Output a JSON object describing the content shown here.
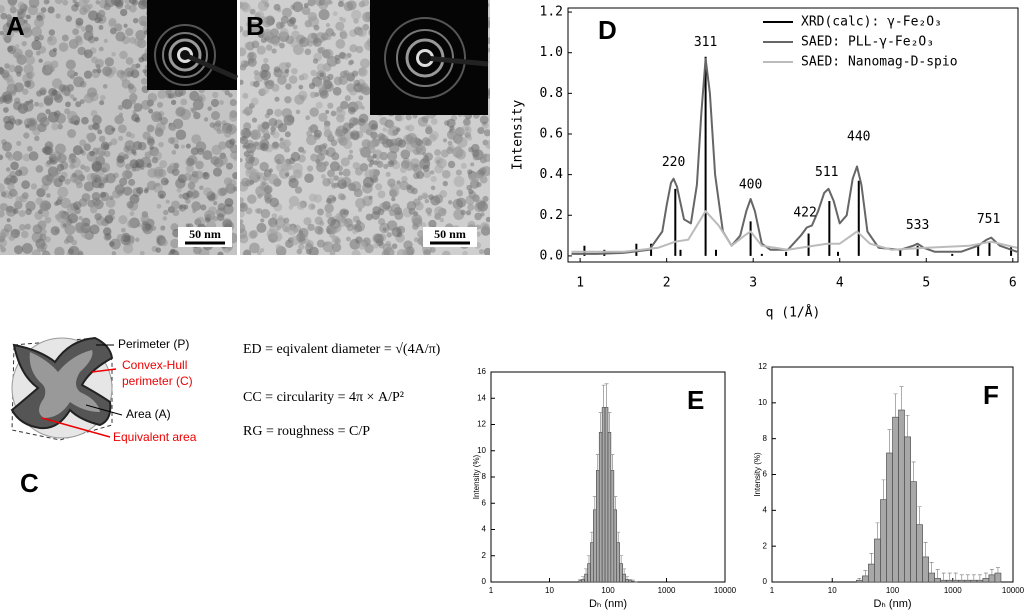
{
  "panels": {
    "a": {
      "label": "A",
      "scale_bar": "50 nm"
    },
    "b": {
      "label": "B",
      "scale_bar": "50 nm"
    },
    "c": {
      "label": "C",
      "perimeter": "Perimeter (P)",
      "convex_hull": [
        "Convex-Hull",
        "perimeter (C)"
      ],
      "area": "Area (A)",
      "equivalent_area": "Equivalent area",
      "formulas": [
        "ED = eqivalent diameter = √(4A/π)",
        "CC = circularity = 4π × A/P²",
        "RG = roughness = C/P"
      ]
    }
  },
  "chart_data": [
    {
      "type": "line",
      "label": "D",
      "xlabel": "q (1/Å)",
      "ylabel": "Intensity",
      "legend": "upper right",
      "xlim": [
        0.86,
        6.06
      ],
      "ylim": [
        -0.03,
        1.22
      ],
      "xticks": [
        1,
        2,
        3,
        4,
        5,
        6
      ],
      "yticks": [
        {
          "value": 0,
          "label": "0.0"
        },
        0.2,
        0.4,
        0.6,
        0.8,
        {
          "value": 1,
          "label": "1.0"
        },
        1.2
      ],
      "series": [
        {
          "name": "XRD(calc): γ-Fe₂O₃",
          "color": "#000000",
          "mark": "stick",
          "x": [
            1.05,
            1.28,
            1.65,
            1.82,
            2.1,
            2.16,
            2.45,
            2.57,
            2.97,
            3.1,
            3.38,
            3.64,
            3.88,
            3.98,
            4.22,
            4.7,
            4.9,
            5.3,
            5.6,
            5.73,
            5.98
          ],
          "values": [
            0.05,
            0.03,
            0.06,
            0.06,
            0.33,
            0.03,
            0.98,
            0.03,
            0.17,
            0.01,
            0.02,
            0.11,
            0.27,
            0.02,
            0.37,
            0.03,
            0.05,
            0.01,
            0.05,
            0.07,
            0.05
          ]
        },
        {
          "name": "SAED: PLL-γ-Fe₂O₃",
          "color": "#666666",
          "x": [
            0.9,
            1.2,
            1.5,
            1.8,
            1.95,
            2.0,
            2.05,
            2.08,
            2.12,
            2.2,
            2.28,
            2.35,
            2.4,
            2.45,
            2.5,
            2.56,
            2.65,
            2.75,
            2.85,
            2.92,
            2.97,
            3.02,
            3.1,
            3.2,
            3.4,
            3.55,
            3.62,
            3.68,
            3.75,
            3.82,
            3.87,
            3.93,
            4.0,
            4.08,
            4.15,
            4.2,
            4.25,
            4.32,
            4.45,
            4.7,
            4.85,
            4.9,
            4.97,
            5.1,
            5.4,
            5.6,
            5.7,
            5.75,
            5.85,
            6.05
          ],
          "values": [
            0.01,
            0.01,
            0.015,
            0.03,
            0.12,
            0.25,
            0.36,
            0.38,
            0.34,
            0.18,
            0.16,
            0.35,
            0.7,
            0.97,
            0.8,
            0.4,
            0.12,
            0.05,
            0.1,
            0.22,
            0.28,
            0.22,
            0.06,
            0.03,
            0.03,
            0.1,
            0.14,
            0.15,
            0.22,
            0.31,
            0.33,
            0.27,
            0.16,
            0.2,
            0.38,
            0.44,
            0.35,
            0.12,
            0.04,
            0.03,
            0.05,
            0.06,
            0.04,
            0.02,
            0.02,
            0.05,
            0.08,
            0.09,
            0.05,
            0.02
          ]
        },
        {
          "name": "SAED: Nanomag-D-spio",
          "color": "#bbbbbb",
          "x": [
            0.9,
            1.5,
            1.9,
            2.1,
            2.25,
            2.45,
            2.6,
            2.75,
            2.9,
            2.97,
            3.1,
            3.4,
            3.7,
            3.85,
            4.0,
            4.2,
            4.35,
            4.6,
            5.0,
            5.5,
            5.75,
            6.05
          ],
          "values": [
            0.02,
            0.02,
            0.04,
            0.07,
            0.08,
            0.22,
            0.15,
            0.05,
            0.1,
            0.12,
            0.05,
            0.03,
            0.05,
            0.06,
            0.06,
            0.12,
            0.06,
            0.03,
            0.04,
            0.05,
            0.07,
            0.04
          ]
        }
      ],
      "annotations": [
        {
          "text": "220",
          "x": 2.08,
          "y": 0.46
        },
        {
          "text": "311",
          "x": 2.45,
          "y": 1.05
        },
        {
          "text": "400",
          "x": 2.97,
          "y": 0.35
        },
        {
          "text": "422",
          "x": 3.6,
          "y": 0.21
        },
        {
          "text": "511",
          "x": 3.85,
          "y": 0.41
        },
        {
          "text": "440",
          "x": 4.22,
          "y": 0.585
        },
        {
          "text": "533",
          "x": 4.9,
          "y": 0.15
        },
        {
          "text": "751",
          "x": 5.72,
          "y": 0.18
        }
      ]
    },
    {
      "type": "histogram",
      "label": "E",
      "xlabel": "Dₕ (nm)",
      "ylabel": "Intensity (%)",
      "log_x": true,
      "color": "#a8a8a8",
      "xlim": [
        1,
        10000
      ],
      "ylim": [
        0,
        16
      ],
      "xticks": [
        1,
        10,
        100,
        1000,
        10000
      ],
      "yticks": [
        0,
        2,
        4,
        6,
        8,
        10,
        12,
        14,
        16
      ],
      "bins": [
        31.6,
        35.5,
        39.8,
        44.7,
        50.1,
        56.2,
        63.1,
        70.8,
        79.4,
        89.1,
        100,
        112,
        126,
        141,
        158,
        178,
        200,
        224,
        251,
        282,
        316
      ],
      "values": [
        0.1,
        0.2,
        0.6,
        1.4,
        3.0,
        5.5,
        8.5,
        11.4,
        13.3,
        13.3,
        11.4,
        8.5,
        5.5,
        3.0,
        1.4,
        0.6,
        0.2,
        0.1,
        0.05,
        0
      ],
      "errors": [
        0.1,
        0.2,
        0.4,
        0.6,
        0.8,
        1.0,
        1.2,
        1.5,
        1.7,
        1.8,
        1.5,
        1.2,
        1.0,
        0.8,
        0.6,
        0.4,
        0.2,
        0.1,
        0.1,
        0
      ]
    },
    {
      "type": "histogram",
      "label": "F",
      "xlabel": "Dₕ (nm)",
      "ylabel": "Intensity (%)",
      "log_x": true,
      "color": "#a8a8a8",
      "xlim": [
        1,
        10000
      ],
      "ylim": [
        0,
        12
      ],
      "xticks": [
        1,
        10,
        100,
        1000,
        10000
      ],
      "yticks": [
        0,
        2,
        4,
        6,
        8,
        10,
        12
      ],
      "bins": [
        25.1,
        31.6,
        39.8,
        50.1,
        63.1,
        79.4,
        100,
        126,
        158,
        200,
        251,
        316,
        398,
        501,
        631,
        794,
        1000,
        1259,
        1585,
        1995,
        2512,
        3162,
        3981,
        5012,
        6310
      ],
      "values": [
        0.1,
        0.34,
        1.0,
        2.4,
        4.6,
        7.2,
        9.2,
        9.6,
        8.1,
        5.6,
        3.2,
        1.4,
        0.5,
        0.2,
        0.1,
        0.1,
        0.1,
        0.1,
        0.1,
        0.1,
        0.1,
        0.2,
        0.4,
        0.5
      ],
      "errors": [
        0.1,
        0.3,
        0.6,
        0.9,
        1.1,
        1.3,
        1.3,
        1.3,
        1.2,
        1.1,
        1.0,
        0.8,
        0.6,
        0.5,
        0.4,
        0.4,
        0.4,
        0.3,
        0.3,
        0.3,
        0.3,
        0.3,
        0.3,
        0.3
      ]
    }
  ]
}
